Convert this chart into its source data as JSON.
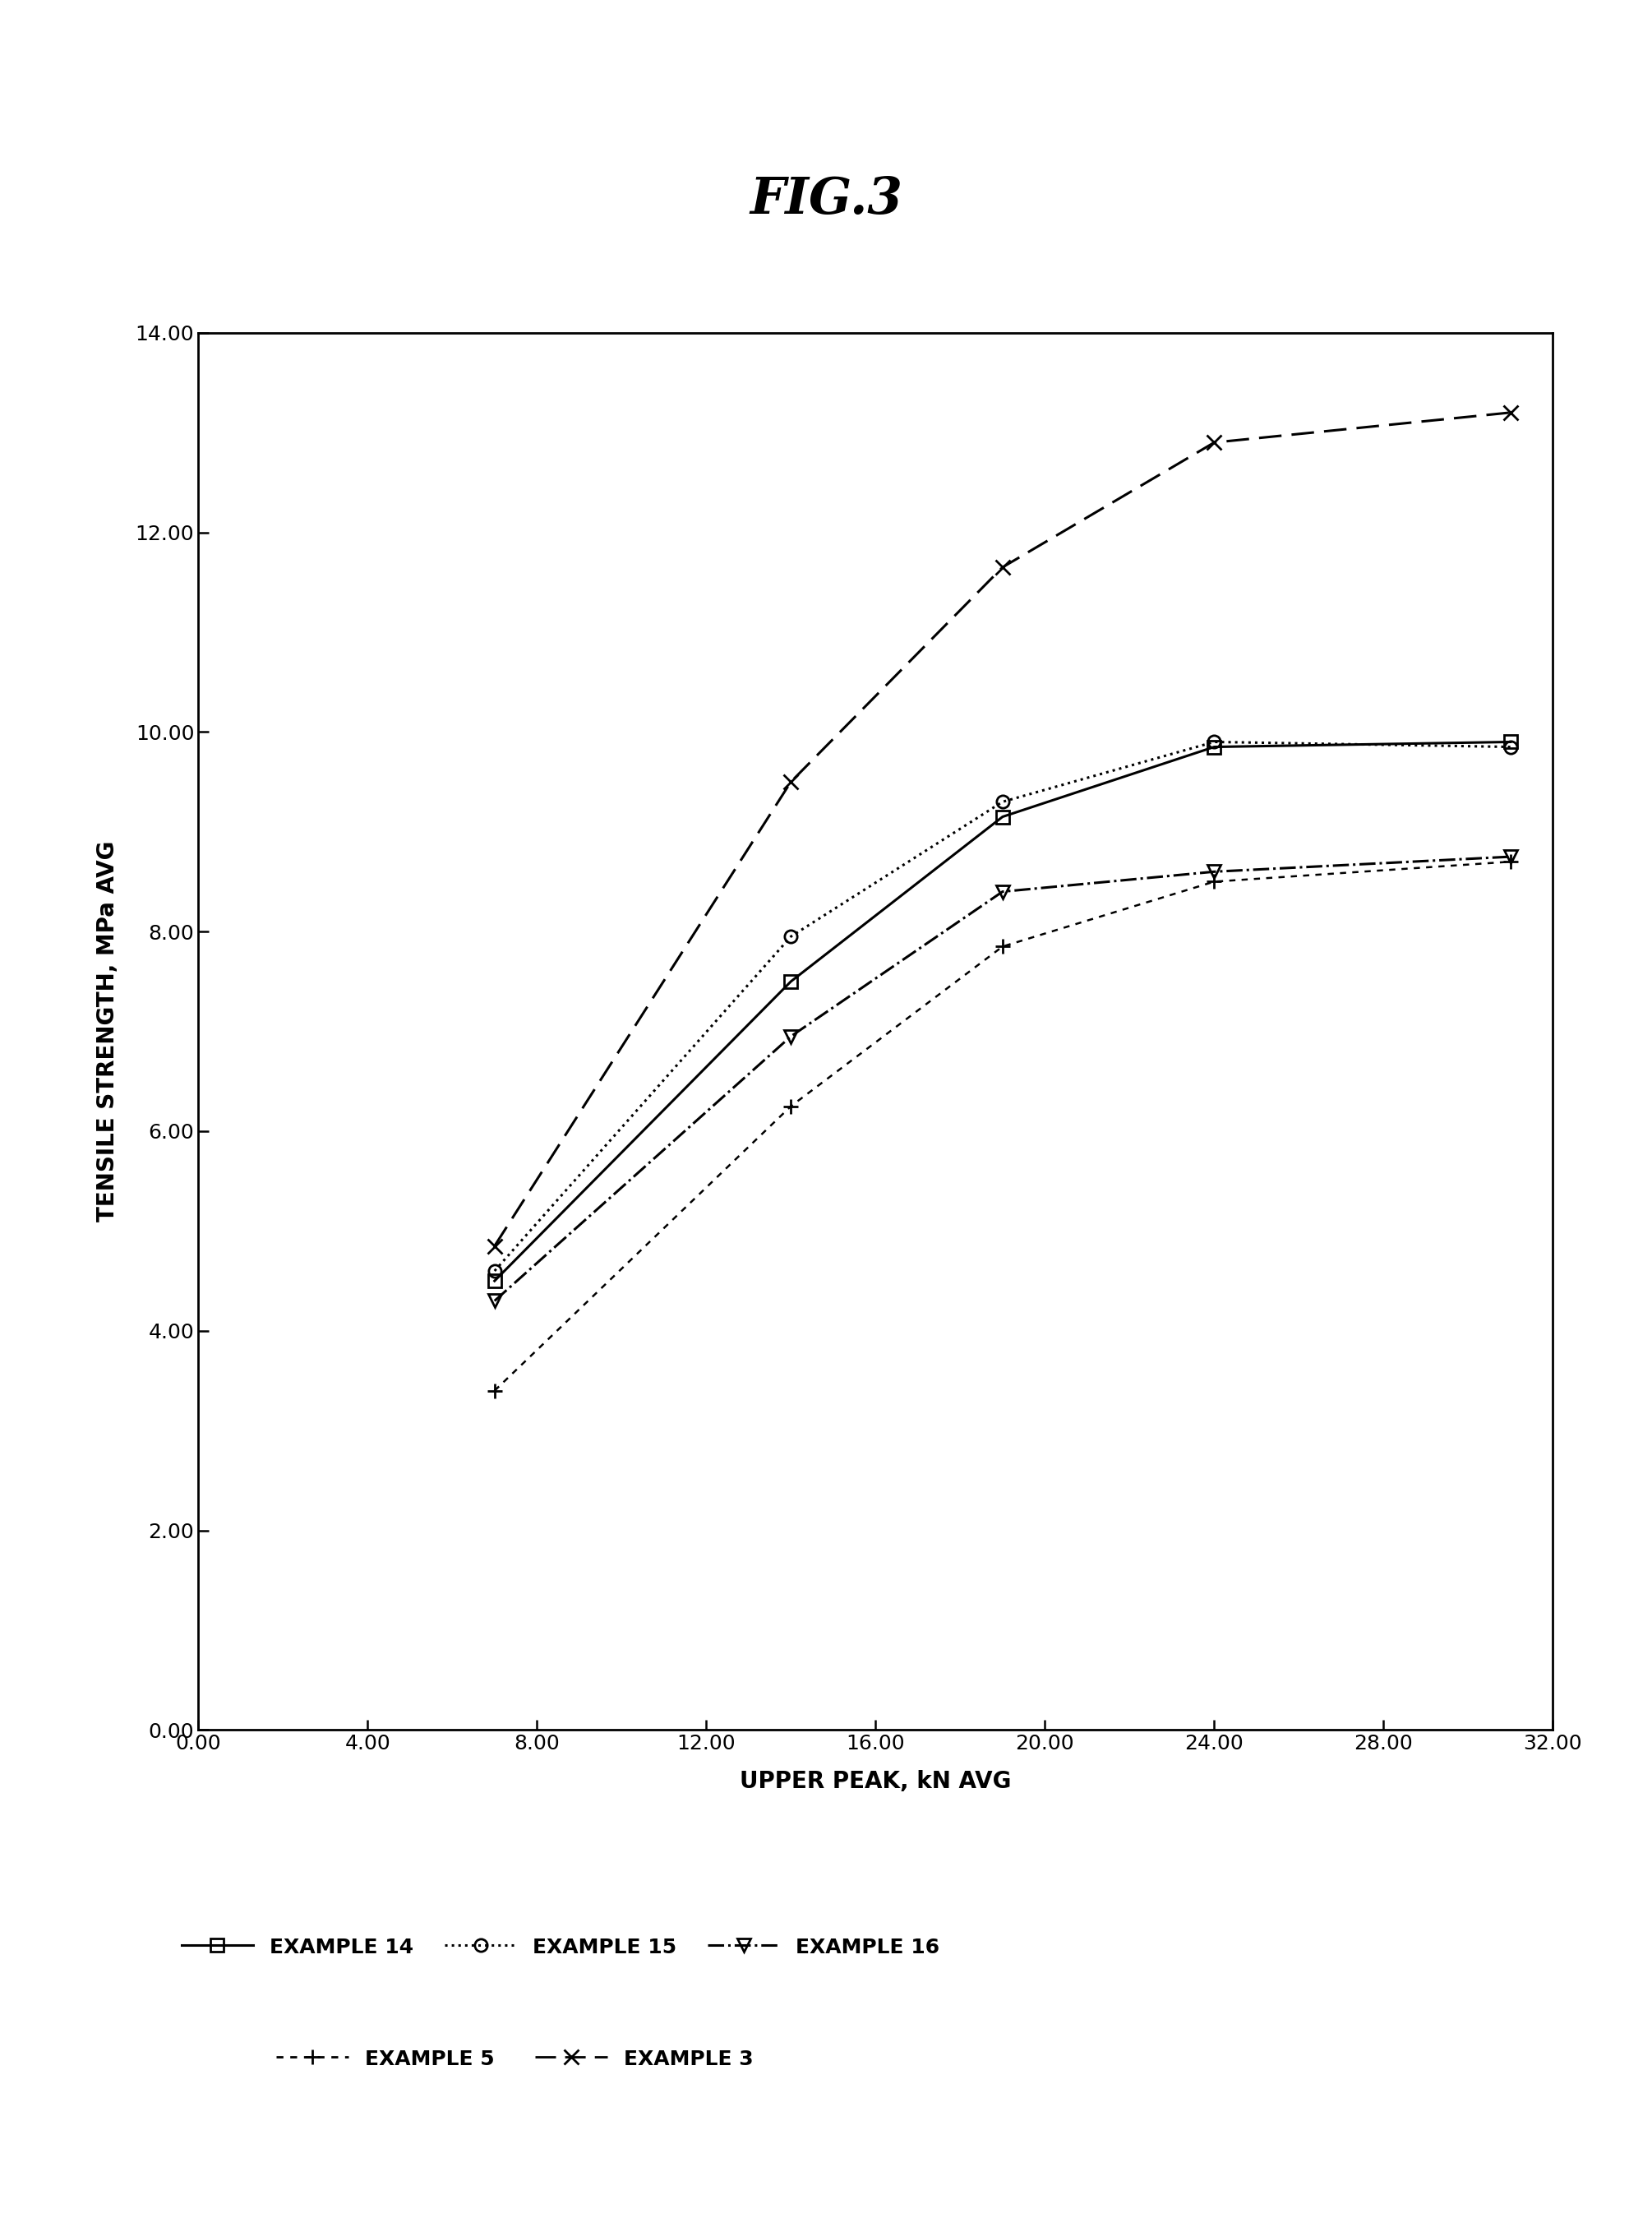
{
  "title": "FIG.3",
  "xlabel": "UPPER PEAK, kN AVG",
  "ylabel": "TENSILE STRENGTH, MPa AVG",
  "xlim": [
    0.0,
    32.0
  ],
  "ylim": [
    0.0,
    14.0
  ],
  "xticks": [
    0.0,
    4.0,
    8.0,
    12.0,
    16.0,
    20.0,
    24.0,
    28.0,
    32.0
  ],
  "yticks": [
    0.0,
    2.0,
    4.0,
    6.0,
    8.0,
    10.0,
    12.0,
    14.0
  ],
  "series": [
    {
      "label": "EXAMPLE 14",
      "x": [
        7.0,
        14.0,
        19.0,
        24.0,
        31.0
      ],
      "y": [
        4.5,
        7.5,
        9.15,
        9.85,
        9.9
      ],
      "color": "#000000",
      "linestyle": "-",
      "marker": "s",
      "markersize": 11,
      "linewidth": 2.2,
      "open_marker": true
    },
    {
      "label": "EXAMPLE 15",
      "x": [
        7.0,
        14.0,
        19.0,
        24.0,
        31.0
      ],
      "y": [
        4.6,
        7.95,
        9.3,
        9.9,
        9.85
      ],
      "color": "#000000",
      "linestyle": ":",
      "marker": "o",
      "markersize": 11,
      "linewidth": 2.2,
      "open_marker": true
    },
    {
      "label": "EXAMPLE 16",
      "x": [
        7.0,
        14.0,
        19.0,
        24.0,
        31.0
      ],
      "y": [
        4.3,
        6.95,
        8.4,
        8.6,
        8.75
      ],
      "color": "#000000",
      "linestyle": "-.",
      "marker": "v",
      "markersize": 11,
      "linewidth": 2.2,
      "open_marker": true
    },
    {
      "label": "EXAMPLE 5",
      "x": [
        7.0,
        14.0,
        19.0,
        24.0,
        31.0
      ],
      "y": [
        3.4,
        6.25,
        7.85,
        8.5,
        8.7
      ],
      "color": "#000000",
      "linestyle": "--",
      "marker": "+",
      "markersize": 13,
      "linewidth": 1.8,
      "open_marker": false,
      "dash_pattern": [
        3,
        3
      ]
    },
    {
      "label": "EXAMPLE 3",
      "x": [
        7.0,
        14.0,
        19.0,
        24.0,
        31.0
      ],
      "y": [
        4.85,
        9.5,
        11.65,
        12.9,
        13.2
      ],
      "color": "#000000",
      "linestyle": "--",
      "marker": "x",
      "markersize": 13,
      "linewidth": 2.2,
      "open_marker": false,
      "dash_pattern": [
        9,
        4
      ]
    }
  ],
  "legend_row1": [
    {
      "label": "EXAMPLE 14",
      "linestyle": "-",
      "marker": "s",
      "open": true
    },
    {
      "label": "EXAMPLE 15",
      "linestyle": ":",
      "marker": "o",
      "open": true
    },
    {
      "label": "EXAMPLE 16",
      "linestyle": "-.",
      "marker": "v",
      "open": true
    }
  ],
  "legend_row2": [
    {
      "label": "EXAMPLE 5",
      "linestyle": "--",
      "marker": "+",
      "open": false,
      "dash": [
        3,
        3
      ]
    },
    {
      "label": "EXAMPLE 3",
      "linestyle": "--",
      "marker": "x",
      "open": false,
      "dash": [
        9,
        4
      ]
    }
  ],
  "background_color": "#ffffff",
  "tick_fontsize": 18,
  "label_fontsize": 20,
  "legend_fontsize": 18,
  "title_fontsize": 44
}
